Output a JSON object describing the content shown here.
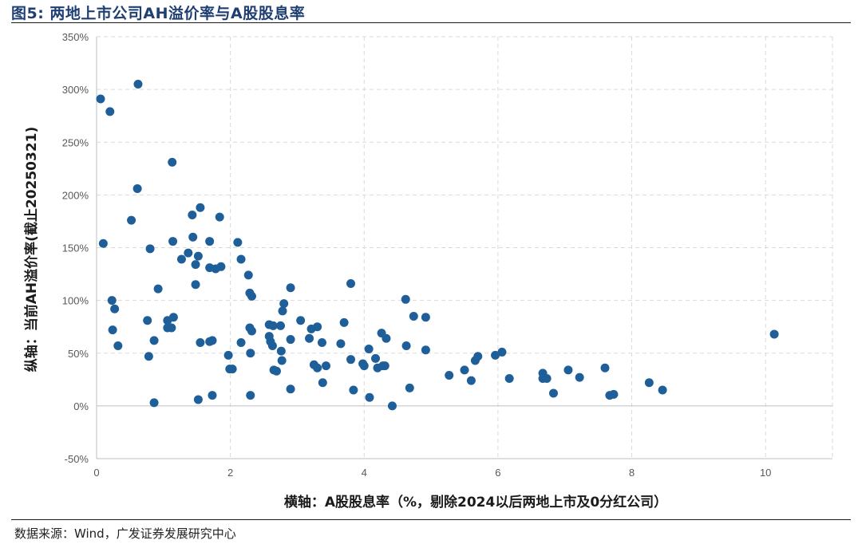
{
  "figure": {
    "title": "图5:  两地上市公司AH溢价率与A股股息率",
    "source": "数据来源：Wind，广发证券发展研究中心"
  },
  "chart_data": {
    "type": "scatter",
    "title": "",
    "xlabel": "横轴：A股股息率（%，剔除2024以后两地上市及0分红公司）",
    "ylabel": "纵轴：当前AH溢价率(截止20250321)",
    "xlim": [
      0,
      11
    ],
    "ylim": [
      -50,
      350
    ],
    "x_ticks": [
      "0",
      "2",
      "4",
      "6",
      "8",
      "10"
    ],
    "y_ticks": [
      "-50%",
      "0%",
      "50%",
      "100%",
      "150%",
      "200%",
      "250%",
      "300%",
      "350%"
    ],
    "grid": "dashed",
    "marker_color": "#1f5f99",
    "points": [
      {
        "x": 0.06,
        "y": 291
      },
      {
        "x": 0.2,
        "y": 279
      },
      {
        "x": 0.62,
        "y": 305
      },
      {
        "x": 1.13,
        "y": 231
      },
      {
        "x": 0.61,
        "y": 206
      },
      {
        "x": 0.52,
        "y": 176
      },
      {
        "x": 0.1,
        "y": 154
      },
      {
        "x": 0.8,
        "y": 149
      },
      {
        "x": 1.43,
        "y": 181
      },
      {
        "x": 1.55,
        "y": 188
      },
      {
        "x": 1.84,
        "y": 179
      },
      {
        "x": 1.14,
        "y": 156
      },
      {
        "x": 1.44,
        "y": 160
      },
      {
        "x": 1.69,
        "y": 156
      },
      {
        "x": 2.11,
        "y": 155
      },
      {
        "x": 1.37,
        "y": 145
      },
      {
        "x": 1.52,
        "y": 142
      },
      {
        "x": 1.27,
        "y": 139
      },
      {
        "x": 1.48,
        "y": 134
      },
      {
        "x": 1.69,
        "y": 131
      },
      {
        "x": 1.78,
        "y": 130
      },
      {
        "x": 1.86,
        "y": 132
      },
      {
        "x": 2.16,
        "y": 139
      },
      {
        "x": 2.27,
        "y": 124
      },
      {
        "x": 1.48,
        "y": 115
      },
      {
        "x": 0.92,
        "y": 111
      },
      {
        "x": 0.23,
        "y": 100
      },
      {
        "x": 0.27,
        "y": 92
      },
      {
        "x": 0.24,
        "y": 72
      },
      {
        "x": 0.32,
        "y": 57
      },
      {
        "x": 0.76,
        "y": 81
      },
      {
        "x": 0.86,
        "y": 62
      },
      {
        "x": 0.78,
        "y": 47
      },
      {
        "x": 1.06,
        "y": 81
      },
      {
        "x": 1.15,
        "y": 84
      },
      {
        "x": 1.06,
        "y": 74
      },
      {
        "x": 1.12,
        "y": 74
      },
      {
        "x": 0.86,
        "y": 3
      },
      {
        "x": 2.29,
        "y": 107
      },
      {
        "x": 2.32,
        "y": 104
      },
      {
        "x": 2.29,
        "y": 74
      },
      {
        "x": 2.32,
        "y": 71
      },
      {
        "x": 1.55,
        "y": 60
      },
      {
        "x": 1.69,
        "y": 61
      },
      {
        "x": 1.73,
        "y": 62
      },
      {
        "x": 2.16,
        "y": 60
      },
      {
        "x": 1.97,
        "y": 48
      },
      {
        "x": 2.3,
        "y": 50
      },
      {
        "x": 1.99,
        "y": 35
      },
      {
        "x": 2.03,
        "y": 35
      },
      {
        "x": 1.52,
        "y": 6
      },
      {
        "x": 1.73,
        "y": 10
      },
      {
        "x": 2.3,
        "y": 10
      },
      {
        "x": 2.8,
        "y": 97
      },
      {
        "x": 2.78,
        "y": 90
      },
      {
        "x": 2.9,
        "y": 112
      },
      {
        "x": 2.58,
        "y": 77
      },
      {
        "x": 2.64,
        "y": 76
      },
      {
        "x": 2.75,
        "y": 76
      },
      {
        "x": 2.58,
        "y": 66
      },
      {
        "x": 2.6,
        "y": 61
      },
      {
        "x": 2.63,
        "y": 57
      },
      {
        "x": 2.76,
        "y": 52
      },
      {
        "x": 2.9,
        "y": 63
      },
      {
        "x": 2.77,
        "y": 43
      },
      {
        "x": 2.65,
        "y": 34
      },
      {
        "x": 2.69,
        "y": 33
      },
      {
        "x": 2.9,
        "y": 16
      },
      {
        "x": 3.05,
        "y": 81
      },
      {
        "x": 3.21,
        "y": 73
      },
      {
        "x": 3.3,
        "y": 75
      },
      {
        "x": 3.18,
        "y": 64
      },
      {
        "x": 3.37,
        "y": 60
      },
      {
        "x": 3.25,
        "y": 39
      },
      {
        "x": 3.3,
        "y": 36
      },
      {
        "x": 3.43,
        "y": 38
      },
      {
        "x": 3.38,
        "y": 22
      },
      {
        "x": 3.8,
        "y": 116
      },
      {
        "x": 3.7,
        "y": 79
      },
      {
        "x": 3.65,
        "y": 59
      },
      {
        "x": 3.8,
        "y": 44
      },
      {
        "x": 3.98,
        "y": 40
      },
      {
        "x": 4.0,
        "y": 38
      },
      {
        "x": 3.84,
        "y": 15
      },
      {
        "x": 4.07,
        "y": 54
      },
      {
        "x": 4.26,
        "y": 69
      },
      {
        "x": 4.33,
        "y": 64
      },
      {
        "x": 4.17,
        "y": 45
      },
      {
        "x": 4.2,
        "y": 36
      },
      {
        "x": 4.28,
        "y": 38
      },
      {
        "x": 4.31,
        "y": 38
      },
      {
        "x": 4.08,
        "y": 8
      },
      {
        "x": 4.42,
        "y": 0
      },
      {
        "x": 4.62,
        "y": 101
      },
      {
        "x": 4.74,
        "y": 85
      },
      {
        "x": 4.92,
        "y": 84
      },
      {
        "x": 4.63,
        "y": 57
      },
      {
        "x": 4.92,
        "y": 53
      },
      {
        "x": 4.68,
        "y": 17
      },
      {
        "x": 5.27,
        "y": 29
      },
      {
        "x": 5.5,
        "y": 34
      },
      {
        "x": 5.6,
        "y": 24
      },
      {
        "x": 5.66,
        "y": 43
      },
      {
        "x": 5.7,
        "y": 47
      },
      {
        "x": 5.96,
        "y": 48
      },
      {
        "x": 6.06,
        "y": 51
      },
      {
        "x": 6.17,
        "y": 26
      },
      {
        "x": 6.67,
        "y": 31
      },
      {
        "x": 6.67,
        "y": 26
      },
      {
        "x": 6.73,
        "y": 26
      },
      {
        "x": 6.83,
        "y": 12
      },
      {
        "x": 7.05,
        "y": 34
      },
      {
        "x": 7.22,
        "y": 27
      },
      {
        "x": 7.6,
        "y": 36
      },
      {
        "x": 7.67,
        "y": 10
      },
      {
        "x": 7.73,
        "y": 11
      },
      {
        "x": 8.26,
        "y": 22
      },
      {
        "x": 8.46,
        "y": 15
      },
      {
        "x": 10.13,
        "y": 68
      }
    ]
  }
}
